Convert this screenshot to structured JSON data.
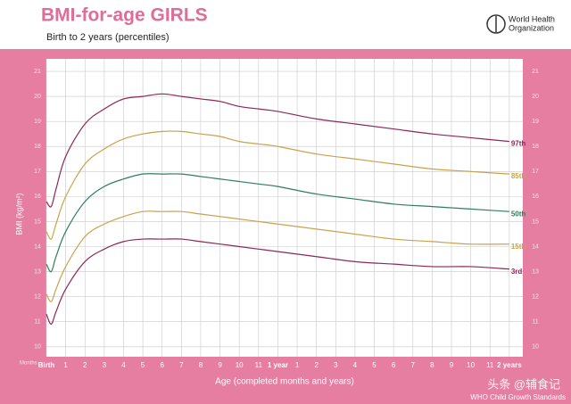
{
  "header": {
    "title": "BMI-for-age GIRLS",
    "subtitle": "Birth to 2 years (percentiles)",
    "logo_lines": [
      "World Health",
      "Organization"
    ]
  },
  "chart_data": {
    "type": "line",
    "x_label": "Age (completed months and years)",
    "y_label": "BMI (kg/m²)",
    "x_unit_label": "Months",
    "x": [
      0,
      0.25,
      0.5,
      1,
      2,
      3,
      4,
      5,
      6,
      7,
      8,
      9,
      10,
      11,
      12,
      14,
      16,
      18,
      20,
      22,
      24
    ],
    "series": [
      {
        "name": "97th",
        "color": "#8e2656",
        "values": [
          15.8,
          15.6,
          16.3,
          17.6,
          18.9,
          19.5,
          19.9,
          20.0,
          20.1,
          20.0,
          19.9,
          19.8,
          19.6,
          19.5,
          19.4,
          19.1,
          18.9,
          18.7,
          18.5,
          18.35,
          18.2
        ]
      },
      {
        "name": "85th",
        "color": "#c9a24a",
        "values": [
          14.6,
          14.3,
          14.9,
          16.0,
          17.3,
          17.9,
          18.3,
          18.5,
          18.6,
          18.6,
          18.5,
          18.4,
          18.2,
          18.1,
          18.0,
          17.7,
          17.5,
          17.3,
          17.1,
          17.0,
          16.9
        ]
      },
      {
        "name": "50th",
        "color": "#2f7d5c",
        "values": [
          13.3,
          13.0,
          13.6,
          14.6,
          15.8,
          16.4,
          16.7,
          16.9,
          16.9,
          16.9,
          16.8,
          16.7,
          16.6,
          16.5,
          16.4,
          16.1,
          15.9,
          15.7,
          15.6,
          15.5,
          15.4
        ]
      },
      {
        "name": "15th",
        "color": "#c9a24a",
        "values": [
          12.1,
          11.8,
          12.3,
          13.2,
          14.4,
          14.9,
          15.2,
          15.4,
          15.4,
          15.4,
          15.3,
          15.2,
          15.1,
          15.0,
          14.9,
          14.7,
          14.5,
          14.3,
          14.2,
          14.1,
          14.1
        ]
      },
      {
        "name": "3rd",
        "color": "#8e2656",
        "values": [
          11.3,
          10.9,
          11.4,
          12.3,
          13.4,
          13.9,
          14.2,
          14.3,
          14.3,
          14.3,
          14.2,
          14.1,
          14.0,
          13.9,
          13.8,
          13.6,
          13.4,
          13.3,
          13.2,
          13.2,
          13.1
        ]
      }
    ],
    "xlim": [
      0,
      24.7
    ],
    "ylim": [
      9.6,
      21.5
    ],
    "xticks": [
      {
        "value": 0,
        "label": "Birth"
      },
      1,
      2,
      3,
      4,
      5,
      6,
      7,
      8,
      9,
      10,
      11,
      {
        "value": 12,
        "label": "1 year"
      },
      {
        "value": 13,
        "label": "1"
      },
      {
        "value": 14,
        "label": "2"
      },
      {
        "value": 15,
        "label": "3"
      },
      {
        "value": 16,
        "label": "4"
      },
      {
        "value": 17,
        "label": "5"
      },
      {
        "value": 18,
        "label": "6"
      },
      {
        "value": 19,
        "label": "7"
      },
      {
        "value": 20,
        "label": "8"
      },
      {
        "value": 21,
        "label": "9"
      },
      {
        "value": 22,
        "label": "10"
      },
      {
        "value": 23,
        "label": "11"
      },
      {
        "value": 24,
        "label": "2 years"
      }
    ],
    "yticks": [
      10,
      11,
      12,
      13,
      14,
      15,
      16,
      17,
      18,
      19,
      20,
      21
    ],
    "grid": true
  },
  "footer": "WHO Child Growth Standards",
  "watermark": "头条 @辅食记"
}
